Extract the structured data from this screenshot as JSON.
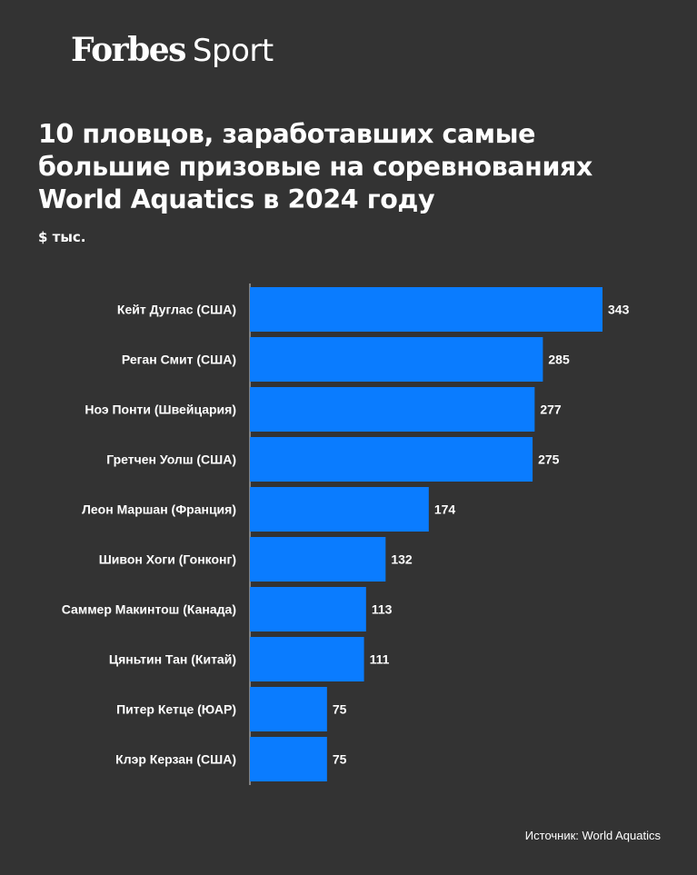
{
  "brand": {
    "name": "Forbes",
    "section": "Sport"
  },
  "header": {
    "title": "10 пловцов, заработавших самые большие призовые на соревнованиях World Aquatics в 2024 году",
    "unit": "$ тыс."
  },
  "footer": {
    "source": "Источник: World Aquatics"
  },
  "colors": {
    "background": "#333333",
    "bar": "#0a7cff",
    "text": "#ffffff"
  },
  "chart_data": {
    "type": "bar",
    "orientation": "horizontal",
    "title": "10 пловцов, заработавших самые большие призовые на соревнованиях World Aquatics в 2024 году",
    "unit": "$ тыс.",
    "categories": [
      "Кейт Дуглас (США)",
      "Реган Смит (США)",
      "Ноэ Понти (Швейцария)",
      "Гретчен Уолш (США)",
      "Леон Маршан (Франция)",
      "Шивон Хоги (Гонконг)",
      "Саммер Макинтош (Канада)",
      "Цяньтин Тан (Китай)",
      "Питер Кетце (ЮАР)",
      "Клэр Керзан (США)"
    ],
    "values": [
      343,
      285,
      277,
      275,
      174,
      132,
      113,
      111,
      75,
      75
    ],
    "xlim": [
      0,
      343
    ],
    "grid": false,
    "legend": "none"
  }
}
